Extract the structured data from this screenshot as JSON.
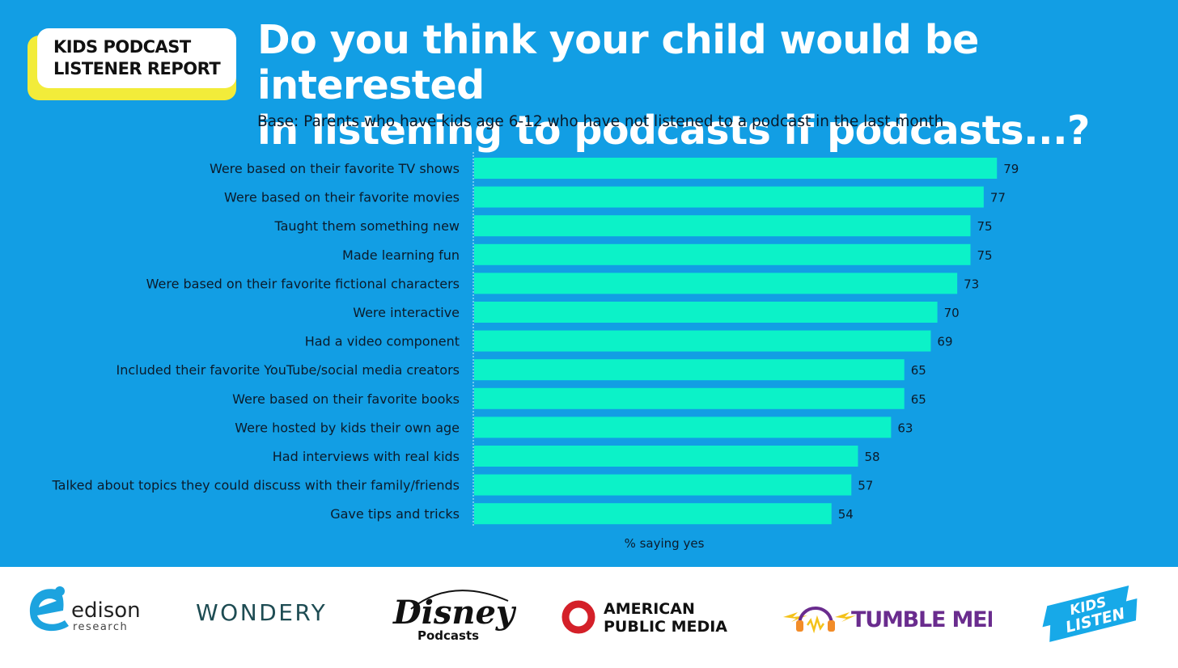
{
  "badge": {
    "line1": "KIDS PODCAST",
    "line2": "LISTENER REPORT"
  },
  "title": {
    "line1": "Do you think your child would be interested",
    "line2": "in listening to podcasts if podcasts...?"
  },
  "subtitle": "Base: Parents who have kids age 6-12 who have not listened to a podcast in the last month",
  "chart_data": {
    "type": "bar",
    "orientation": "horizontal",
    "categories": [
      "Were based on their favorite TV shows",
      "Were based on their favorite movies",
      "Taught them something new",
      "Made learning fun",
      "Were based on their favorite fictional characters",
      "Were interactive",
      "Had a video component",
      "Included their favorite YouTube/social media creators",
      "Were based on their favorite books",
      "Were hosted by kids their own age",
      "Had interviews with real kids",
      "Talked about topics they could discuss with their family/friends",
      "Gave tips and tricks"
    ],
    "values": [
      79,
      77,
      75,
      75,
      73,
      70,
      69,
      65,
      65,
      63,
      58,
      57,
      54
    ],
    "xlabel": "% saying yes",
    "xlim": [
      0,
      100
    ],
    "grid": false,
    "bar_color": "#0CF2C8"
  },
  "colors": {
    "background": "#129EE4",
    "bar": "#0CF2C8",
    "badge_shadow": "#F2EC3A"
  },
  "logos": {
    "edison": {
      "name": "edison",
      "sub": "research"
    },
    "wondery": "WONDERY",
    "disney": {
      "name": "Disney",
      "sub": "Podcasts"
    },
    "apm": {
      "line1": "AMERICAN",
      "line2": "PUBLIC MEDIA"
    },
    "tumble": "TUMBLE MEDIA",
    "kidslisten": {
      "line1": "KIDS",
      "line2": "LISTEN"
    }
  }
}
